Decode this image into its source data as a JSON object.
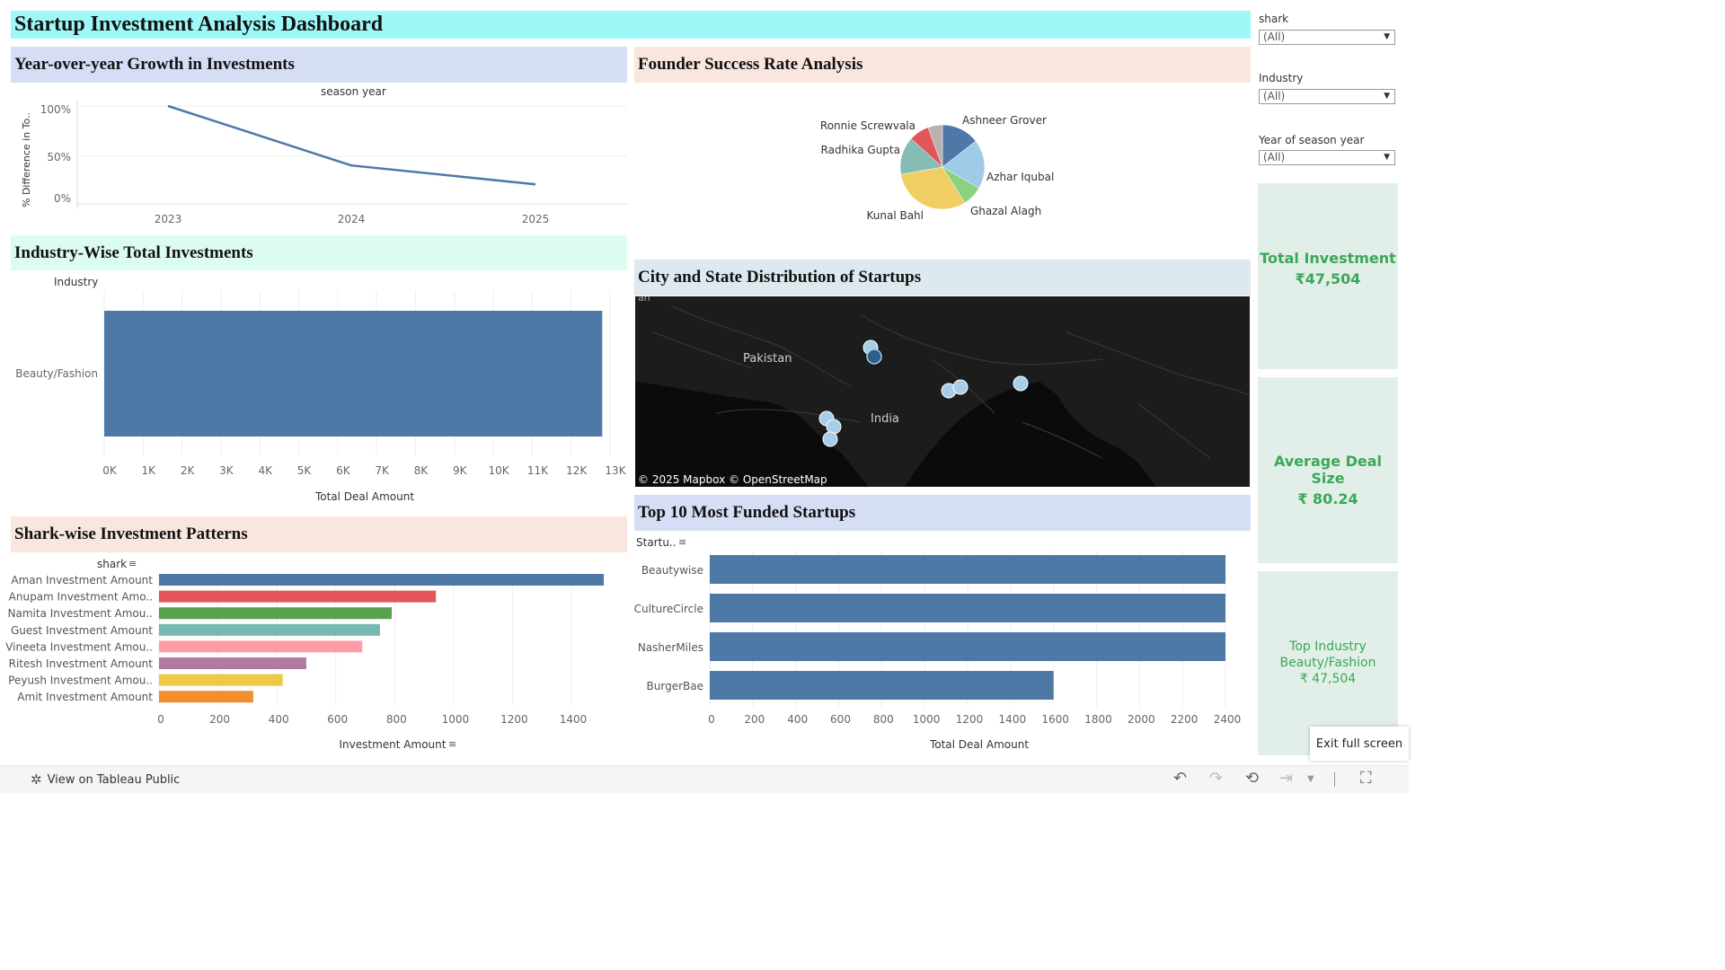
{
  "dashboard": {
    "title": "Startup Investment Analysis Dashboard"
  },
  "filters": {
    "shark": {
      "label": "shark",
      "value": "(All)"
    },
    "industry": {
      "label": "Industry",
      "value": "(All)"
    },
    "year": {
      "label": "Year of season year",
      "value": "(All)"
    }
  },
  "kpis": {
    "total_investment": {
      "label": "Total Investment",
      "value": "₹47,504"
    },
    "average_deal": {
      "label": "Average Deal Size",
      "value": "₹ 80.24"
    },
    "top_industry": {
      "label": "Top Industry",
      "name": "Beauty/Fashion",
      "value": "₹ 47,504"
    }
  },
  "growth": {
    "title": "Year-over-year Growth in Investments",
    "header": "season year",
    "ylabel": "% Difference in To..",
    "yticks": [
      "100%",
      "50%",
      "0%"
    ],
    "xticks": [
      "2023",
      "2024",
      "2025"
    ]
  },
  "industry": {
    "title": "Industry-Wise Total Investments",
    "header": "Industry",
    "category": "Beauty/Fashion",
    "xticks": [
      "0K",
      "1K",
      "2K",
      "3K",
      "4K",
      "5K",
      "6K",
      "7K",
      "8K",
      "9K",
      "10K",
      "11K",
      "12K",
      "13K"
    ],
    "xlabel": "Total Deal Amount"
  },
  "shark": {
    "title": "Shark-wise Investment Patterns",
    "header": "shark",
    "xticks": [
      "0",
      "200",
      "400",
      "600",
      "800",
      "1000",
      "1200",
      "1400"
    ],
    "xlabel": "Investment Amount"
  },
  "founder": {
    "title": "Founder Success Rate Analysis"
  },
  "map": {
    "title": "City and State Distribution of Startups",
    "label_pakistan": "Pakistan",
    "label_india": "India",
    "attribution": "© 2025 Mapbox  © OpenStreetMap",
    "corner_text": "an"
  },
  "top10": {
    "title": "Top 10 Most Funded Startups",
    "header": "Startu..",
    "xticks": [
      "0",
      "200",
      "400",
      "600",
      "800",
      "1000",
      "1200",
      "1400",
      "1600",
      "1800",
      "2000",
      "2200",
      "2400"
    ],
    "xlabel": "Total Deal Amount"
  },
  "footer": {
    "view_label": "View on Tableau Public",
    "exit_label": "Exit full screen"
  },
  "chart_data": [
    {
      "type": "line",
      "title": "Year-over-year Growth in Investments",
      "x": [
        "2023",
        "2024",
        "2025"
      ],
      "series": [
        {
          "values": [
            100,
            37,
            17
          ]
        }
      ],
      "ylabel": "% Difference in To..",
      "xlabel": "season year",
      "ylim": [
        -10,
        110
      ],
      "color": "#4e79a7"
    },
    {
      "type": "bar",
      "orientation": "horizontal",
      "title": "Industry-Wise Total Investments",
      "categories": [
        "Beauty/Fashion"
      ],
      "values": [
        12800
      ],
      "xlabel": "Total Deal Amount",
      "xlim": [
        0,
        13000
      ],
      "color": "#4e79a7"
    },
    {
      "type": "bar",
      "orientation": "horizontal",
      "title": "Shark-wise Investment Patterns",
      "categories": [
        "Aman Investment Amount",
        "Anupam Investment Amo..",
        "Namita Investment Amou..",
        "Guest Investment Amount",
        "Vineeta Investment Amou..",
        "Ritesh Investment Amount",
        "Peyush Investment Amou..",
        "Amit Investment Amount"
      ],
      "values": [
        1510,
        940,
        790,
        750,
        690,
        500,
        420,
        320
      ],
      "colors": [
        "#4e79a7",
        "#e15759",
        "#59a14f",
        "#76b7b2",
        "#ff9da7",
        "#b07aa1",
        "#edc948",
        "#f28e2b"
      ],
      "xlabel": "Investment Amount",
      "xlim": [
        0,
        1500
      ]
    },
    {
      "type": "pie",
      "title": "Founder Success Rate Analysis",
      "categories": [
        "Ashneer Grover",
        "Azhar Iqubal",
        "Ghazal Alagh",
        "Kunal Bahl",
        "Radhika Gupta",
        "Ronnie Screwvala",
        ""
      ],
      "values": [
        13,
        17,
        7,
        28,
        13,
        7,
        5
      ],
      "colors": [
        "#4e79a7",
        "#a0cbe8",
        "#8cd17d",
        "#f1ce63",
        "#86bcb6",
        "#e15759",
        "#bab0ac"
      ]
    },
    {
      "type": "bar",
      "orientation": "horizontal",
      "title": "Top 10 Most Funded Startups",
      "categories": [
        "Beautywise",
        "CultureCircle",
        "NasherMiles",
        "BurgerBae"
      ],
      "values": [
        2400,
        2400,
        2400,
        1600
      ],
      "xlabel": "Total Deal Amount",
      "xlim": [
        0,
        2400
      ],
      "color": "#4e79a7"
    }
  ]
}
